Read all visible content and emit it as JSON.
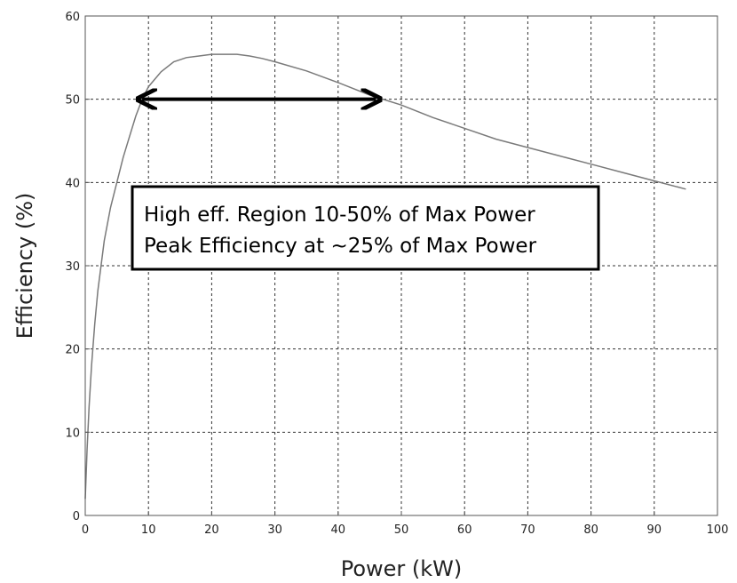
{
  "chart_data": {
    "type": "line",
    "title": "",
    "xlabel": "Power (kW)",
    "ylabel": "Efficiency (%)",
    "xlim": [
      0,
      100
    ],
    "ylim": [
      0,
      60
    ],
    "xticks": [
      0,
      10,
      20,
      30,
      40,
      50,
      60,
      70,
      80,
      90,
      100
    ],
    "yticks": [
      0,
      10,
      20,
      30,
      40,
      50,
      60
    ],
    "grid": true,
    "series": [
      {
        "color": "#7a7a7a",
        "x": [
          0,
          0.3,
          0.6,
          1,
          1.5,
          2,
          3,
          4,
          5,
          6,
          7,
          8,
          9,
          10,
          12,
          14,
          16,
          18,
          20,
          22,
          24,
          26,
          28,
          30,
          35,
          40,
          45,
          50,
          55,
          60,
          65,
          70,
          75,
          80,
          85,
          90,
          95
        ],
        "y": [
          2,
          8,
          13,
          18,
          23,
          27,
          33,
          37,
          40,
          43,
          45.5,
          48,
          50,
          51.5,
          53.3,
          54.5,
          55,
          55.2,
          55.4,
          55.4,
          55.4,
          55.2,
          54.9,
          54.5,
          53.4,
          52,
          50.5,
          49.3,
          47.8,
          46.5,
          45.2,
          44.2,
          43.2,
          42.2,
          41.2,
          40.2,
          39.2
        ]
      }
    ],
    "arrow": {
      "x_start": 9,
      "x_end": 46,
      "y": 50,
      "color": "#000000"
    },
    "annotation": {
      "lines": [
        "High eff. Region 10-50% of Max Power",
        "Peak Efficiency at ~25% of Max Power"
      ]
    }
  }
}
